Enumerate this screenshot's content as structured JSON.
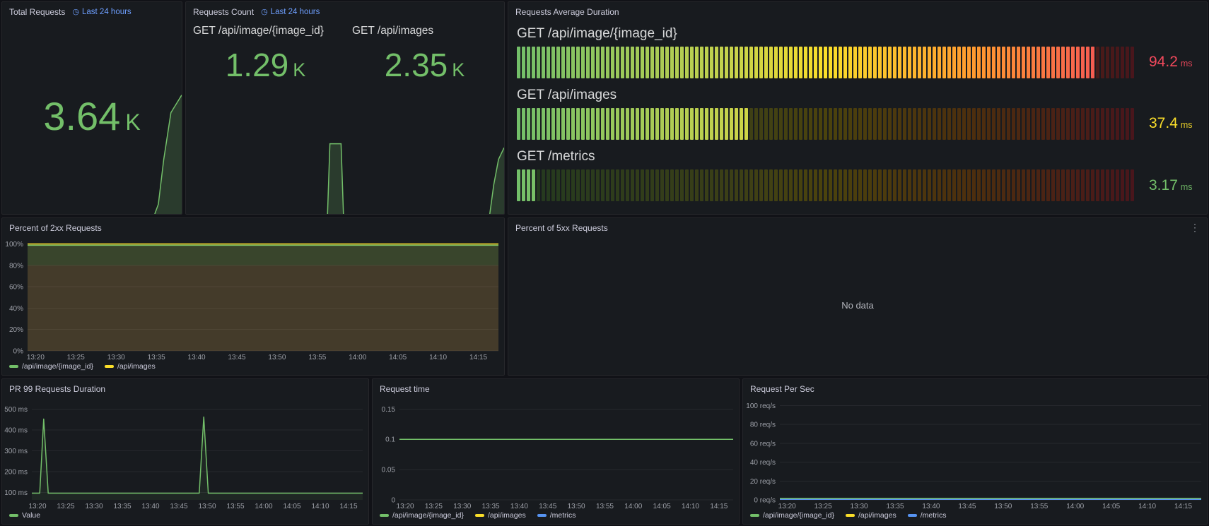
{
  "icons": {
    "clock": "◷",
    "kebab": "⋮"
  },
  "theme": {
    "bg": "#111217",
    "panel_bg": "#181b1f",
    "border": "#26272b",
    "text": "#ccccdc",
    "text_dim": "#9da0a8",
    "link": "#6e9fff",
    "green": "#73bf69",
    "green_fill": "rgba(115,191,105,0.20)",
    "yellow": "#fade2a",
    "orange": "#ff9830",
    "red": "#f2495c",
    "blue": "#5794f2",
    "grid": "rgba(204,204,220,0.08)"
  },
  "gauge": {
    "seg_width": 5,
    "seg_gap": 2,
    "dim_factor": 0.3,
    "gradient": [
      [
        0,
        "#73bf69"
      ],
      [
        0.35,
        "#c8d34b"
      ],
      [
        0.5,
        "#fade2a"
      ],
      [
        0.75,
        "#ff9830"
      ],
      [
        1,
        "#f2495c"
      ]
    ]
  },
  "panels": {
    "total_requests": {
      "title": "Total Requests",
      "time_range": "Last 24 hours",
      "value": "3.64",
      "suffix": "K"
    },
    "requests_count": {
      "title": "Requests Count",
      "time_range": "Last 24 hours",
      "stats": [
        {
          "label": "GET /api/image/{image_id}",
          "value": "1.29",
          "suffix": "K"
        },
        {
          "label": "GET /api/images",
          "value": "2.35",
          "suffix": "K"
        }
      ]
    },
    "requests_avg_duration": {
      "title": "Requests Average Duration",
      "gauges": [
        {
          "label": "GET /api/image/{image_id}",
          "value": 94.2,
          "display": "94.2",
          "unit": "ms",
          "max": 100,
          "value_color": "#f2495c"
        },
        {
          "label": "GET /api/images",
          "value": 37.4,
          "display": "37.4",
          "unit": "ms",
          "max": 100,
          "value_color": "#fade2a"
        },
        {
          "label": "GET /metrics",
          "value": 3.17,
          "display": "3.17",
          "unit": "ms",
          "max": 100,
          "value_color": "#73bf69"
        }
      ]
    },
    "percent_2xx": {
      "title": "Percent of 2xx Requests"
    },
    "percent_5xx": {
      "title": "Percent of 5xx Requests",
      "no_data": "No data"
    },
    "pr99": {
      "title": "PR 99 Requests Duration"
    },
    "request_time": {
      "title": "Request time"
    },
    "request_per_sec": {
      "title": "Request Per Sec"
    }
  },
  "chart_data": [
    {
      "id": "percent_2xx",
      "type": "line",
      "title": "Percent of 2xx Requests",
      "pad_left": 36,
      "xlim": [
        -1,
        57.5
      ],
      "ylim": [
        0,
        103
      ],
      "xticks": [
        {
          "v": 0,
          "label": "13:20"
        },
        {
          "v": 5,
          "label": "13:25"
        },
        {
          "v": 10,
          "label": "13:30"
        },
        {
          "v": 15,
          "label": "13:35"
        },
        {
          "v": 20,
          "label": "13:40"
        },
        {
          "v": 25,
          "label": "13:45"
        },
        {
          "v": 30,
          "label": "13:50"
        },
        {
          "v": 35,
          "label": "13:55"
        },
        {
          "v": 40,
          "label": "14:00"
        },
        {
          "v": 45,
          "label": "14:05"
        },
        {
          "v": 50,
          "label": "14:10"
        },
        {
          "v": 55,
          "label": "14:15"
        }
      ],
      "yticks": [
        {
          "v": 0,
          "label": "0%"
        },
        {
          "v": 20,
          "label": "20%"
        },
        {
          "v": 40,
          "label": "40%"
        },
        {
          "v": 60,
          "label": "60%"
        },
        {
          "v": 80,
          "label": "80%"
        },
        {
          "v": 100,
          "label": "100%"
        }
      ],
      "regions": [
        {
          "from": 0,
          "to": 80,
          "color": "rgba(242,73,92,0.10)"
        },
        {
          "from": 80,
          "to": 100,
          "color": "rgba(115,191,105,0.10)"
        }
      ],
      "series": [
        {
          "name": "/api/image/{image_id}",
          "color": "#73bf69",
          "fill": "rgba(115,191,105,0.10)",
          "points": [
            [
              -1,
              98.8
            ],
            [
              57.5,
              98.8
            ]
          ]
        },
        {
          "name": "/api/images",
          "color": "#fade2a",
          "fill": "rgba(250,222,42,0.08)",
          "points": [
            [
              -1,
              100
            ],
            [
              57.5,
              100
            ]
          ]
        }
      ],
      "legend": [
        {
          "name": "/api/image/{image_id}",
          "color": "#73bf69"
        },
        {
          "name": "/api/images",
          "color": "#fade2a"
        }
      ]
    },
    {
      "id": "pr99",
      "type": "line",
      "title": "PR 99 Requests Duration",
      "pad_left": 42,
      "xlim": [
        -1,
        57.5
      ],
      "ylim": [
        65,
        535
      ],
      "xticks": [
        {
          "v": 0,
          "label": "13:20"
        },
        {
          "v": 5,
          "label": "13:25"
        },
        {
          "v": 10,
          "label": "13:30"
        },
        {
          "v": 15,
          "label": "13:35"
        },
        {
          "v": 20,
          "label": "13:40"
        },
        {
          "v": 25,
          "label": "13:45"
        },
        {
          "v": 30,
          "label": "13:50"
        },
        {
          "v": 35,
          "label": "13:55"
        },
        {
          "v": 40,
          "label": "14:00"
        },
        {
          "v": 45,
          "label": "14:05"
        },
        {
          "v": 50,
          "label": "14:10"
        },
        {
          "v": 55,
          "label": "14:15"
        }
      ],
      "yticks": [
        {
          "v": 100,
          "label": "100 ms"
        },
        {
          "v": 200,
          "label": "200 ms"
        },
        {
          "v": 300,
          "label": "300 ms"
        },
        {
          "v": 400,
          "label": "400 ms"
        },
        {
          "v": 500,
          "label": "500 ms"
        }
      ],
      "series": [
        {
          "name": "Value",
          "color": "#73bf69",
          "fill": "rgba(115,191,105,0.08)",
          "points": [
            [
              -1,
              97
            ],
            [
              0.4,
              97
            ],
            [
              1.1,
              452
            ],
            [
              1.9,
              97
            ],
            [
              28.6,
              97
            ],
            [
              29.4,
              462
            ],
            [
              30.2,
              97
            ],
            [
              57.5,
              97
            ]
          ]
        }
      ],
      "legend": [
        {
          "name": "Value",
          "color": "#73bf69"
        }
      ]
    },
    {
      "id": "request_time",
      "type": "line",
      "title": "Request time",
      "pad_left": 38,
      "xlim": [
        -1,
        57.5
      ],
      "ylim": [
        0,
        0.162
      ],
      "xticks": [
        {
          "v": 0,
          "label": "13:20"
        },
        {
          "v": 5,
          "label": "13:25"
        },
        {
          "v": 10,
          "label": "13:30"
        },
        {
          "v": 15,
          "label": "13:35"
        },
        {
          "v": 20,
          "label": "13:40"
        },
        {
          "v": 25,
          "label": "13:45"
        },
        {
          "v": 30,
          "label": "13:50"
        },
        {
          "v": 35,
          "label": "13:55"
        },
        {
          "v": 40,
          "label": "14:00"
        },
        {
          "v": 45,
          "label": "14:05"
        },
        {
          "v": 50,
          "label": "14:10"
        },
        {
          "v": 55,
          "label": "14:15"
        }
      ],
      "yticks": [
        {
          "v": 0,
          "label": "0"
        },
        {
          "v": 0.05,
          "label": "0.05"
        },
        {
          "v": 0.1,
          "label": "0.1"
        },
        {
          "v": 0.15,
          "label": "0.15"
        }
      ],
      "series": [
        {
          "name": "/api/images",
          "color": "#fade2a",
          "points": [
            [
              -1,
              0.1
            ],
            [
              57.5,
              0.1
            ]
          ]
        },
        {
          "name": "/metrics",
          "color": "#5794f2",
          "points": [
            [
              -1,
              0.1
            ],
            [
              57.5,
              0.1
            ]
          ]
        },
        {
          "name": "/api/image/{image_id}",
          "color": "#73bf69",
          "points": [
            [
              -1,
              0.1
            ],
            [
              57.5,
              0.1
            ]
          ]
        }
      ],
      "legend": [
        {
          "name": "/api/image/{image_id}",
          "color": "#73bf69"
        },
        {
          "name": "/api/images",
          "color": "#fade2a"
        },
        {
          "name": "/metrics",
          "color": "#5794f2"
        }
      ]
    },
    {
      "id": "request_per_sec",
      "type": "line",
      "title": "Request Per Sec",
      "pad_left": 52,
      "xlim": [
        -1,
        57.5
      ],
      "ylim": [
        0,
        104
      ],
      "xticks": [
        {
          "v": 0,
          "label": "13:20"
        },
        {
          "v": 5,
          "label": "13:25"
        },
        {
          "v": 10,
          "label": "13:30"
        },
        {
          "v": 15,
          "label": "13:35"
        },
        {
          "v": 20,
          "label": "13:40"
        },
        {
          "v": 25,
          "label": "13:45"
        },
        {
          "v": 30,
          "label": "13:50"
        },
        {
          "v": 35,
          "label": "13:55"
        },
        {
          "v": 40,
          "label": "14:00"
        },
        {
          "v": 45,
          "label": "14:05"
        },
        {
          "v": 50,
          "label": "14:10"
        },
        {
          "v": 55,
          "label": "14:15"
        }
      ],
      "yticks": [
        {
          "v": 0,
          "label": "0 req/s"
        },
        {
          "v": 20,
          "label": "20 req/s"
        },
        {
          "v": 40,
          "label": "40 req/s"
        },
        {
          "v": 60,
          "label": "60 req/s"
        },
        {
          "v": 80,
          "label": "80 req/s"
        },
        {
          "v": 100,
          "label": "100 req/s"
        }
      ],
      "series": [
        {
          "name": "/api/images",
          "color": "#fade2a",
          "points": [
            [
              -1,
              1.0
            ],
            [
              57.5,
              1.0
            ]
          ]
        },
        {
          "name": "/metrics",
          "color": "#5794f2",
          "points": [
            [
              -1,
              0.6
            ],
            [
              57.5,
              0.6
            ]
          ]
        },
        {
          "name": "/api/image/{image_id}",
          "color": "#73bf69",
          "points": [
            [
              -1,
              1.6
            ],
            [
              57.5,
              1.6
            ]
          ]
        }
      ],
      "legend": [
        {
          "name": "/api/image/{image_id}",
          "color": "#73bf69"
        },
        {
          "name": "/api/images",
          "color": "#fade2a"
        },
        {
          "name": "/metrics",
          "color": "#5794f2"
        }
      ]
    }
  ]
}
